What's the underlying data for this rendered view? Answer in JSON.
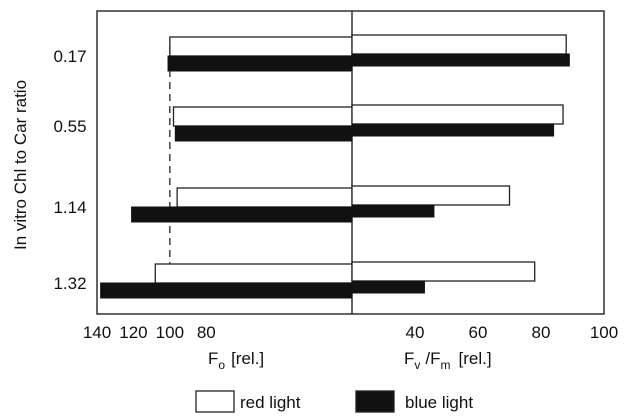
{
  "chart_data": [
    {
      "type": "bar",
      "orientation": "horizontal",
      "xlabel_parts": [
        "F",
        "o",
        "[rel.]"
      ],
      "ylabel": "In vitro Chl to Car ratio",
      "categories": [
        "0.17",
        "0.55",
        "1.14",
        "1.32"
      ],
      "xlim": [
        140,
        0
      ],
      "xticks": [
        140,
        120,
        100,
        80
      ],
      "reference_line": 100,
      "series": [
        {
          "name": "red light",
          "color": "#ffffff",
          "values": [
            100,
            98,
            96,
            108
          ]
        },
        {
          "name": "blue light",
          "color": "#111111",
          "values": [
            101,
            97,
            121,
            138
          ]
        }
      ]
    },
    {
      "type": "bar",
      "orientation": "horizontal",
      "xlabel_parts": [
        "F",
        "v",
        "/F",
        "m",
        "[rel.]"
      ],
      "categories": [
        "0.17",
        "0.55",
        "1.14",
        "1.32"
      ],
      "xlim": [
        20,
        100
      ],
      "xticks": [
        40,
        60,
        80,
        100
      ],
      "series": [
        {
          "name": "red light",
          "color": "#ffffff",
          "values": [
            88,
            87,
            70,
            78
          ]
        },
        {
          "name": "blue light",
          "color": "#111111",
          "values": [
            89,
            84,
            46,
            43
          ]
        }
      ]
    }
  ],
  "legend": {
    "items": [
      {
        "label": "red light",
        "color": "#ffffff"
      },
      {
        "label": "blue light",
        "color": "#111111"
      }
    ]
  }
}
